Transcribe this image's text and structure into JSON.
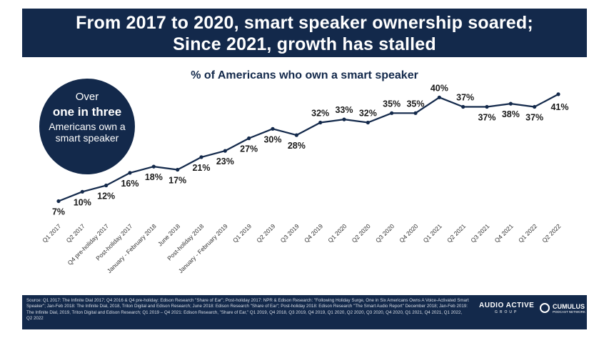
{
  "header": {
    "line1": "From 2017 to 2020, smart speaker ownership soared;",
    "line2": "Since 2021, growth has stalled"
  },
  "callout": {
    "line1": "Over",
    "line2": "one in three",
    "line3": "Americans own a smart speaker"
  },
  "chart_data": {
    "type": "line",
    "title": "% of Americans who own a smart speaker",
    "categories": [
      "Q1 2017",
      "Q2 2017",
      "Q4 pre-holiday 2017",
      "Post-holiday 2017",
      "January - February 2018",
      "June 2018",
      "Post-holiday 2018",
      "January - February 2019",
      "Q1 2019",
      "Q2 2019",
      "Q3 2019",
      "Q4 2019",
      "Q1 2020",
      "Q2 2020",
      "Q3 2020",
      "Q4 2020",
      "Q1 2021",
      "Q2 2021",
      "Q3 2021",
      "Q4 2021",
      "Q1 2022",
      "Q2 2022"
    ],
    "series": [
      {
        "values": [
          7,
          10,
          12,
          16,
          18,
          17,
          21,
          23,
          27,
          30,
          28,
          32,
          33,
          32,
          35,
          35,
          40,
          37,
          37,
          38,
          37,
          41
        ]
      }
    ],
    "data_labels": [
      "7%",
      "10%",
      "12%",
      "16%",
      "18%",
      "17%",
      "21%",
      "23%",
      "27%",
      "30%",
      "28%",
      "32%",
      "33%",
      "32%",
      "35%",
      "35%",
      "40%",
      "37%",
      "37%",
      "38%",
      "37%",
      "41%"
    ],
    "line_color": "#13294b",
    "grid": false
  },
  "footer": {
    "source": "Source: Q1 2017: The Infinite Dial 2017; Q4 2016 & Q4 pre-holiday: Edison Research \"Share of Ear\"; Post-holiday 2017: NPR & Edison Research: \"Following Holiday Surge, One in Six Americans Owns A Voice-Activated Smart Speaker\"; Jan-Feb 2018: The Infinite Dial, 2018, Triton Digital and Edison Research; June 2018: Edison Research \"Share of Ear\"; Post-holiday 2018: Edison Research \"The Smart Audio Report\" December 2018; Jan-Feb 2019: The Infinite Dial, 2019, Triton Digital and Edison Research; Q1 2019 – Q4 2021: Edison Research, \"Share of Ear,\" Q1 2019, Q4 2018, Q3 2019, Q4 2019, Q1 2020, Q2 2020, Q3 2020, Q4 2020, Q1 2021, Q4 2021, Q1 2022, Q2 2022",
    "logo1_main": "AUDIO ACTIVE",
    "logo1_sub": "GROUP",
    "logo2_main": "CUMULUS",
    "logo2_sub": "PODCAST NETWORK"
  },
  "colors": {
    "navy": "#13294b",
    "text": "#1a1a1a"
  }
}
